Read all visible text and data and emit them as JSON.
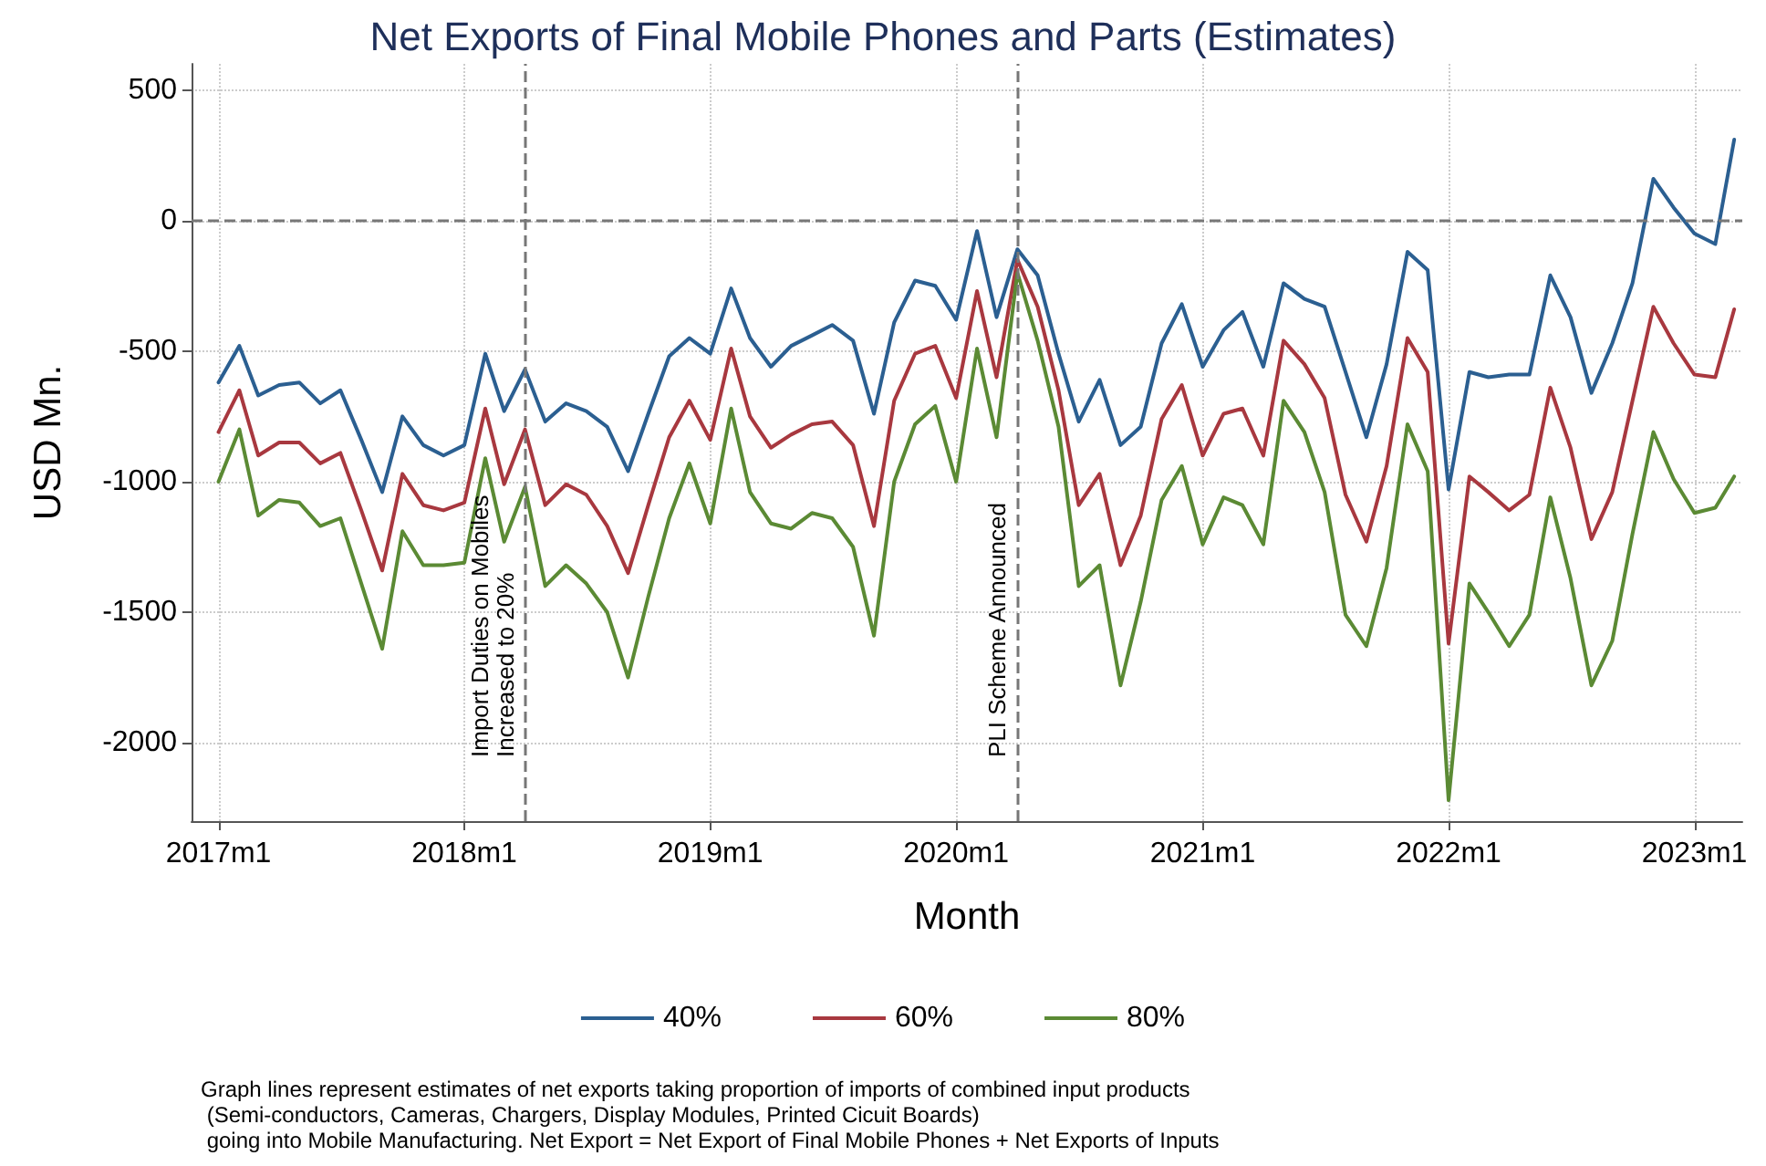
{
  "chart_data": {
    "type": "line",
    "title": "Net Exports of Final Mobile Phones and Parts (Estimates)",
    "xlabel": "Month",
    "ylabel": "USD Mn.",
    "x": [
      "2017-01",
      "2017-02",
      "2017-03",
      "2017-04",
      "2017-05",
      "2017-06",
      "2017-07",
      "2017-08",
      "2017-09",
      "2017-10",
      "2017-11",
      "2017-12",
      "2018-01",
      "2018-02",
      "2018-03",
      "2018-04",
      "2018-05",
      "2018-06",
      "2018-07",
      "2018-08",
      "2018-09",
      "2018-10",
      "2018-11",
      "2018-12",
      "2019-01",
      "2019-02",
      "2019-03",
      "2019-04",
      "2019-05",
      "2019-06",
      "2019-07",
      "2019-08",
      "2019-09",
      "2019-10",
      "2019-11",
      "2019-12",
      "2020-01",
      "2020-02",
      "2020-03",
      "2020-04",
      "2020-05",
      "2020-06",
      "2020-07",
      "2020-08",
      "2020-09",
      "2020-10",
      "2020-11",
      "2020-12",
      "2021-01",
      "2021-02",
      "2021-03",
      "2021-04",
      "2021-05",
      "2021-06",
      "2021-07",
      "2021-08",
      "2021-09",
      "2021-10",
      "2021-11",
      "2021-12",
      "2022-01",
      "2022-02",
      "2022-03",
      "2022-04",
      "2022-05",
      "2022-06",
      "2022-07",
      "2022-08",
      "2022-09",
      "2022-10",
      "2022-11",
      "2022-12",
      "2023-01",
      "2023-02",
      "2023-03"
    ],
    "series": [
      {
        "name": "40%",
        "color": "#2b5f91",
        "values": [
          -620,
          -480,
          -670,
          -630,
          -620,
          -700,
          -650,
          -840,
          -1040,
          -750,
          -860,
          -900,
          -860,
          -510,
          -730,
          -570,
          -770,
          -700,
          -730,
          -790,
          -960,
          -740,
          -520,
          -450,
          -510,
          -260,
          -450,
          -560,
          -480,
          -440,
          -400,
          -460,
          -740,
          -390,
          -230,
          -250,
          -380,
          -40,
          -370,
          -110,
          -210,
          -510,
          -770,
          -610,
          -860,
          -790,
          -470,
          -320,
          -560,
          -420,
          -350,
          -560,
          -240,
          -300,
          -330,
          -580,
          -830,
          -550,
          -120,
          -190,
          -1030,
          -580,
          -600,
          -590,
          -590,
          -210,
          -370,
          -660,
          -470,
          -240,
          160,
          50,
          -50,
          -90,
          310
        ]
      },
      {
        "name": "60%",
        "color": "#a8383f",
        "values": [
          -810,
          -650,
          -900,
          -850,
          -850,
          -930,
          -890,
          -1110,
          -1340,
          -970,
          -1090,
          -1110,
          -1080,
          -720,
          -1010,
          -800,
          -1090,
          -1010,
          -1050,
          -1170,
          -1350,
          -1090,
          -830,
          -690,
          -840,
          -490,
          -750,
          -870,
          -820,
          -780,
          -770,
          -860,
          -1170,
          -690,
          -510,
          -480,
          -680,
          -270,
          -600,
          -150,
          -330,
          -650,
          -1090,
          -970,
          -1320,
          -1130,
          -760,
          -630,
          -900,
          -740,
          -720,
          -900,
          -460,
          -550,
          -680,
          -1050,
          -1230,
          -940,
          -450,
          -580,
          -1620,
          -980,
          -1040,
          -1110,
          -1050,
          -640,
          -870,
          -1220,
          -1040,
          -690,
          -330,
          -470,
          -590,
          -600,
          -340
        ]
      },
      {
        "name": "80%",
        "color": "#5b8a34",
        "values": [
          -1000,
          -800,
          -1130,
          -1070,
          -1080,
          -1170,
          -1140,
          -1390,
          -1640,
          -1190,
          -1320,
          -1320,
          -1310,
          -910,
          -1230,
          -1020,
          -1400,
          -1320,
          -1390,
          -1500,
          -1750,
          -1440,
          -1140,
          -930,
          -1160,
          -720,
          -1040,
          -1160,
          -1180,
          -1120,
          -1140,
          -1250,
          -1590,
          -1000,
          -780,
          -710,
          -1000,
          -490,
          -830,
          -200,
          -460,
          -790,
          -1400,
          -1320,
          -1780,
          -1460,
          -1070,
          -940,
          -1240,
          -1060,
          -1090,
          -1240,
          -690,
          -810,
          -1040,
          -1510,
          -1630,
          -1330,
          -780,
          -960,
          -2220,
          -1390,
          -1500,
          -1630,
          -1510,
          -1060,
          -1370,
          -1780,
          -1610,
          -1200,
          -810,
          -990,
          -1120,
          -1100,
          -980
        ]
      }
    ],
    "xlim": [
      "2016-11-22",
      "2023-03-13"
    ],
    "xticks": [
      {
        "value": "2017-01",
        "label": "2017m1"
      },
      {
        "value": "2018-01",
        "label": "2018m1"
      },
      {
        "value": "2019-01",
        "label": "2019m1"
      },
      {
        "value": "2020-01",
        "label": "2020m1"
      },
      {
        "value": "2021-01",
        "label": "2021m1"
      },
      {
        "value": "2022-01",
        "label": "2022m1"
      },
      {
        "value": "2023-01",
        "label": "2023m1"
      }
    ],
    "ylim": [
      -2300,
      600
    ],
    "yticks": [
      -2000,
      -1500,
      -1000,
      -500,
      0,
      500
    ],
    "grid": true,
    "legend": "bottom",
    "line_style": "solid",
    "ref_lines": [
      {
        "axis": "y",
        "value": 0,
        "line_style": "dashed",
        "color": "#777777"
      },
      {
        "axis": "x",
        "value": "2018-04",
        "label": "Import Duties on Mobiles\nIncreased to 20%",
        "line_style": "dashed",
        "color": "#777777"
      },
      {
        "axis": "x",
        "value": "2020-04",
        "label": "PLI Scheme Announced",
        "line_style": "dashed",
        "color": "#777777"
      }
    ],
    "annotations": [
      "Graph lines represent estimates of net exports taking proportion of imports of combined input products\n (Semi-conductors, Cameras, Chargers, Display Modules, Printed Cicuit Boards)\n going into Mobile Manufacturing. Net Export = Net Export of Final Mobile Phones + Net Exports of Inputs"
    ]
  }
}
